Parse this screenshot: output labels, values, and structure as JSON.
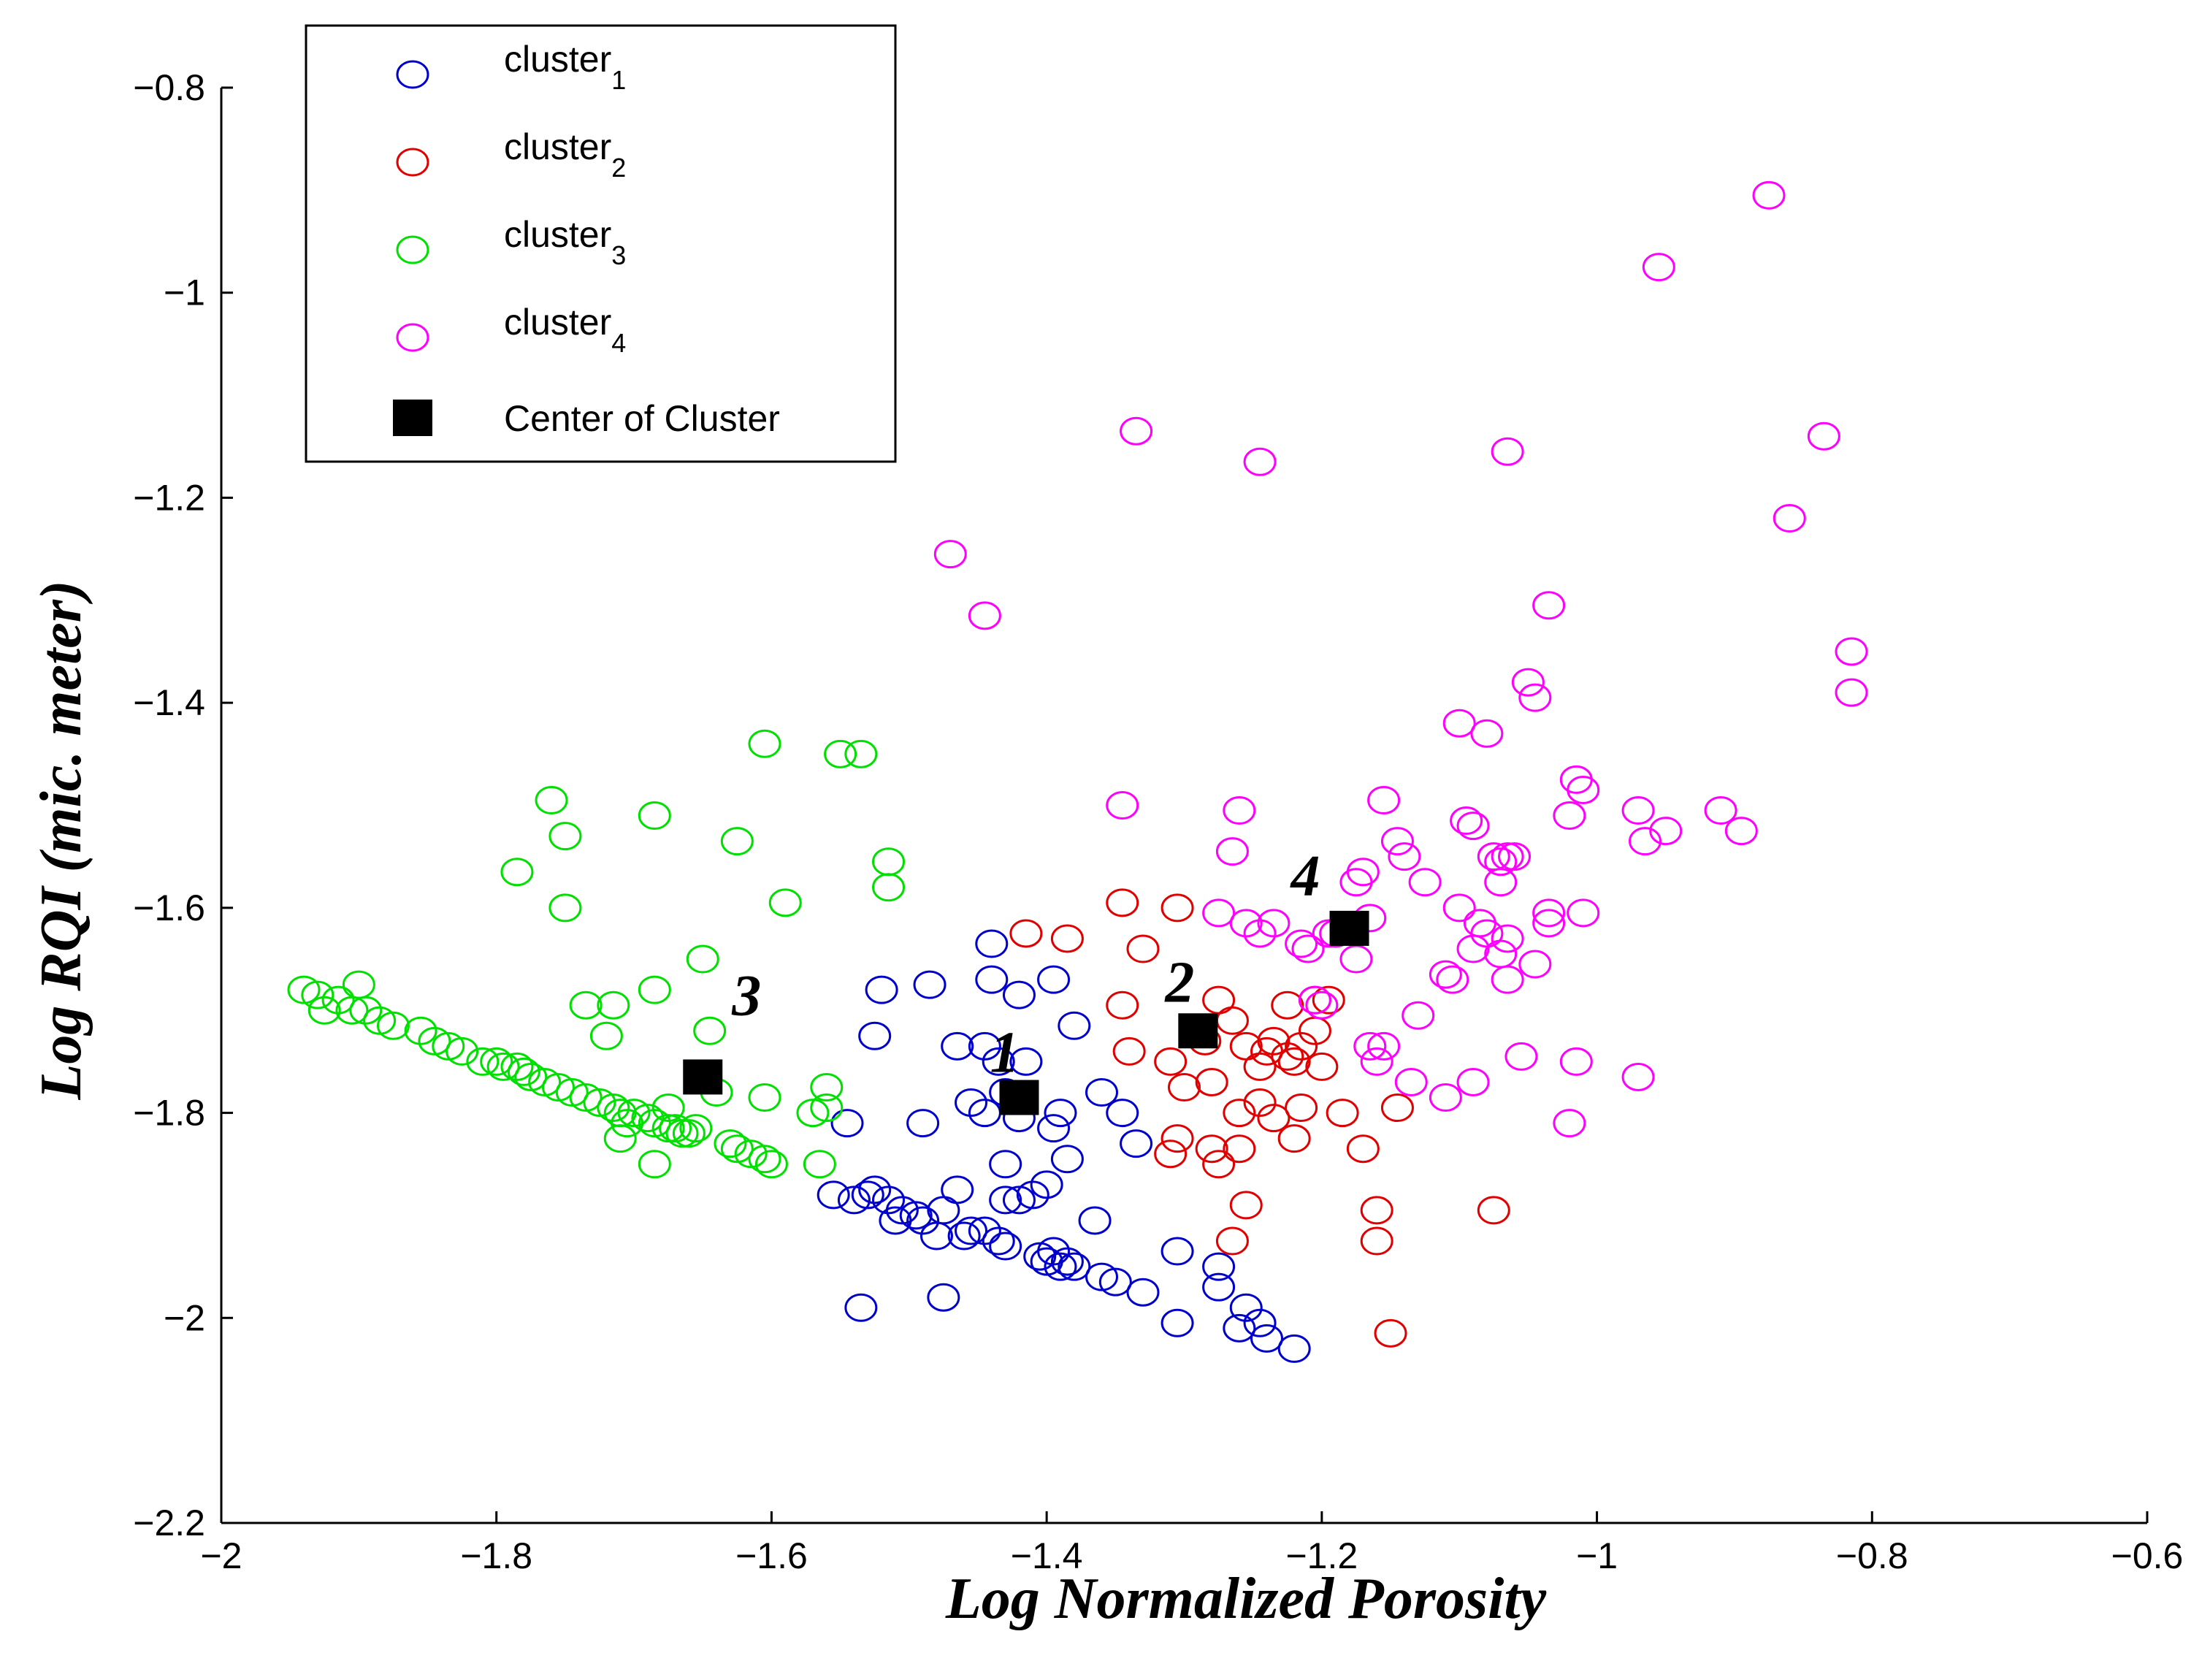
{
  "chart_data": {
    "type": "scatter",
    "title": "",
    "xlabel": "Log Normalized Porosity",
    "ylabel": "Log  RQI (mic. meter)",
    "xlim": [
      -2,
      -0.6
    ],
    "ylim": [
      -2.2,
      -0.8
    ],
    "xticks": [
      -2,
      -1.8,
      -1.6,
      -1.4,
      -1.2,
      -1,
      -0.8,
      -0.6
    ],
    "xtick_labels": [
      "−2",
      "−1.8",
      "−1.6",
      "−1.4",
      "−1.2",
      "−1",
      "−0.8",
      "−0.6"
    ],
    "yticks": [
      -2.2,
      -2,
      -1.8,
      -1.6,
      -1.4,
      -1.2,
      -1,
      -0.8
    ],
    "ytick_labels": [
      "−2.2",
      "−2",
      "−1.8",
      "−1.6",
      "−1.4",
      "−1.2",
      "−1",
      "−0.8"
    ],
    "legend_position": "top-left",
    "series": [
      {
        "name": "cluster",
        "sub": "1",
        "color": "#0000cc",
        "marker": "circle",
        "points": [
          [
            -1.44,
            -1.635
          ],
          [
            -1.44,
            -1.67
          ],
          [
            -1.42,
            -1.685
          ],
          [
            -1.395,
            -1.67
          ],
          [
            -1.52,
            -1.68
          ],
          [
            -1.485,
            -1.675
          ],
          [
            -1.525,
            -1.725
          ],
          [
            -1.465,
            -1.735
          ],
          [
            -1.445,
            -1.735
          ],
          [
            -1.435,
            -1.75
          ],
          [
            -1.415,
            -1.75
          ],
          [
            -1.38,
            -1.715
          ],
          [
            -1.36,
            -1.78
          ],
          [
            -1.345,
            -1.8
          ],
          [
            -1.335,
            -1.83
          ],
          [
            -1.545,
            -1.81
          ],
          [
            -1.49,
            -1.81
          ],
          [
            -1.455,
            -1.79
          ],
          [
            -1.445,
            -1.8
          ],
          [
            -1.43,
            -1.78
          ],
          [
            -1.42,
            -1.805
          ],
          [
            -1.395,
            -1.815
          ],
          [
            -1.39,
            -1.8
          ],
          [
            -1.43,
            -1.85
          ],
          [
            -1.385,
            -1.845
          ],
          [
            -1.555,
            -1.88
          ],
          [
            -1.54,
            -1.885
          ],
          [
            -1.53,
            -1.88
          ],
          [
            -1.525,
            -1.875
          ],
          [
            -1.515,
            -1.885
          ],
          [
            -1.51,
            -1.905
          ],
          [
            -1.505,
            -1.895
          ],
          [
            -1.495,
            -1.9
          ],
          [
            -1.49,
            -1.905
          ],
          [
            -1.48,
            -1.92
          ],
          [
            -1.475,
            -1.895
          ],
          [
            -1.465,
            -1.875
          ],
          [
            -1.46,
            -1.92
          ],
          [
            -1.455,
            -1.915
          ],
          [
            -1.445,
            -1.915
          ],
          [
            -1.435,
            -1.925
          ],
          [
            -1.43,
            -1.93
          ],
          [
            -1.43,
            -1.885
          ],
          [
            -1.42,
            -1.885
          ],
          [
            -1.41,
            -1.88
          ],
          [
            -1.4,
            -1.87
          ],
          [
            -1.405,
            -1.94
          ],
          [
            -1.4,
            -1.945
          ],
          [
            -1.39,
            -1.95
          ],
          [
            -1.385,
            -1.945
          ],
          [
            -1.38,
            -1.95
          ],
          [
            -1.395,
            -1.935
          ],
          [
            -1.36,
            -1.96
          ],
          [
            -1.35,
            -1.965
          ],
          [
            -1.365,
            -1.905
          ],
          [
            -1.33,
            -1.975
          ],
          [
            -1.305,
            -1.935
          ],
          [
            -1.275,
            -1.95
          ],
          [
            -1.275,
            -1.97
          ],
          [
            -1.26,
            -2.01
          ],
          [
            -1.255,
            -1.99
          ],
          [
            -1.245,
            -2.005
          ],
          [
            -1.24,
            -2.02
          ],
          [
            -1.22,
            -2.03
          ],
          [
            -1.305,
            -2.005
          ],
          [
            -1.475,
            -1.98
          ],
          [
            -1.535,
            -1.99
          ]
        ]
      },
      {
        "name": "cluster",
        "sub": "2",
        "color": "#e00000",
        "marker": "circle",
        "points": [
          [
            -1.415,
            -1.625
          ],
          [
            -1.385,
            -1.63
          ],
          [
            -1.345,
            -1.595
          ],
          [
            -1.305,
            -1.6
          ],
          [
            -1.33,
            -1.64
          ],
          [
            -1.345,
            -1.695
          ],
          [
            -1.34,
            -1.74
          ],
          [
            -1.31,
            -1.75
          ],
          [
            -1.3,
            -1.775
          ],
          [
            -1.285,
            -1.73
          ],
          [
            -1.275,
            -1.69
          ],
          [
            -1.265,
            -1.71
          ],
          [
            -1.255,
            -1.735
          ],
          [
            -1.245,
            -1.755
          ],
          [
            -1.24,
            -1.74
          ],
          [
            -1.235,
            -1.73
          ],
          [
            -1.225,
            -1.745
          ],
          [
            -1.22,
            -1.75
          ],
          [
            -1.215,
            -1.735
          ],
          [
            -1.205,
            -1.72
          ],
          [
            -1.2,
            -1.755
          ],
          [
            -1.195,
            -1.69
          ],
          [
            -1.205,
            -1.69
          ],
          [
            -1.225,
            -1.695
          ],
          [
            -1.28,
            -1.77
          ],
          [
            -1.26,
            -1.8
          ],
          [
            -1.245,
            -1.79
          ],
          [
            -1.235,
            -1.805
          ],
          [
            -1.22,
            -1.825
          ],
          [
            -1.215,
            -1.795
          ],
          [
            -1.185,
            -1.8
          ],
          [
            -1.17,
            -1.835
          ],
          [
            -1.145,
            -1.795
          ],
          [
            -1.305,
            -1.825
          ],
          [
            -1.31,
            -1.84
          ],
          [
            -1.28,
            -1.835
          ],
          [
            -1.275,
            -1.85
          ],
          [
            -1.26,
            -1.835
          ],
          [
            -1.255,
            -1.89
          ],
          [
            -1.265,
            -1.925
          ],
          [
            -1.16,
            -1.895
          ],
          [
            -1.16,
            -1.925
          ],
          [
            -1.15,
            -2.015
          ],
          [
            -1.075,
            -1.895
          ]
        ]
      },
      {
        "name": "cluster",
        "sub": "3",
        "color": "#00e000",
        "marker": "circle",
        "points": [
          [
            -1.94,
            -1.68
          ],
          [
            -1.93,
            -1.685
          ],
          [
            -1.925,
            -1.7
          ],
          [
            -1.915,
            -1.69
          ],
          [
            -1.905,
            -1.7
          ],
          [
            -1.9,
            -1.675
          ],
          [
            -1.895,
            -1.7
          ],
          [
            -1.885,
            -1.71
          ],
          [
            -1.875,
            -1.715
          ],
          [
            -1.855,
            -1.72
          ],
          [
            -1.845,
            -1.73
          ],
          [
            -1.835,
            -1.735
          ],
          [
            -1.825,
            -1.74
          ],
          [
            -1.81,
            -1.75
          ],
          [
            -1.8,
            -1.75
          ],
          [
            -1.795,
            -1.755
          ],
          [
            -1.785,
            -1.755
          ],
          [
            -1.78,
            -1.76
          ],
          [
            -1.775,
            -1.765
          ],
          [
            -1.765,
            -1.77
          ],
          [
            -1.755,
            -1.775
          ],
          [
            -1.745,
            -1.78
          ],
          [
            -1.735,
            -1.785
          ],
          [
            -1.725,
            -1.79
          ],
          [
            -1.715,
            -1.795
          ],
          [
            -1.71,
            -1.8
          ],
          [
            -1.705,
            -1.81
          ],
          [
            -1.7,
            -1.8
          ],
          [
            -1.69,
            -1.805
          ],
          [
            -1.685,
            -1.81
          ],
          [
            -1.675,
            -1.815
          ],
          [
            -1.67,
            -1.815
          ],
          [
            -1.665,
            -1.82
          ],
          [
            -1.66,
            -1.82
          ],
          [
            -1.655,
            -1.815
          ],
          [
            -1.63,
            -1.83
          ],
          [
            -1.625,
            -1.835
          ],
          [
            -1.615,
            -1.84
          ],
          [
            -1.605,
            -1.845
          ],
          [
            -1.6,
            -1.85
          ],
          [
            -1.565,
            -1.85
          ],
          [
            -1.685,
            -1.85
          ],
          [
            -1.71,
            -1.825
          ],
          [
            -1.675,
            -1.795
          ],
          [
            -1.64,
            -1.78
          ],
          [
            -1.605,
            -1.785
          ],
          [
            -1.57,
            -1.8
          ],
          [
            -1.56,
            -1.795
          ],
          [
            -1.56,
            -1.775
          ],
          [
            -1.72,
            -1.725
          ],
          [
            -1.735,
            -1.695
          ],
          [
            -1.715,
            -1.695
          ],
          [
            -1.685,
            -1.68
          ],
          [
            -1.65,
            -1.65
          ],
          [
            -1.645,
            -1.72
          ],
          [
            -1.76,
            -1.495
          ],
          [
            -1.75,
            -1.53
          ],
          [
            -1.785,
            -1.565
          ],
          [
            -1.75,
            -1.6
          ],
          [
            -1.685,
            -1.51
          ],
          [
            -1.625,
            -1.535
          ],
          [
            -1.605,
            -1.44
          ],
          [
            -1.55,
            -1.45
          ],
          [
            -1.535,
            -1.45
          ],
          [
            -1.515,
            -1.555
          ],
          [
            -1.515,
            -1.58
          ],
          [
            -1.59,
            -1.595
          ]
        ]
      },
      {
        "name": "cluster",
        "sub": "4",
        "color": "#ff00ff",
        "marker": "circle",
        "points": [
          [
            -0.875,
            -0.905
          ],
          [
            -0.955,
            -0.975
          ],
          [
            -1.335,
            -1.135
          ],
          [
            -1.245,
            -1.165
          ],
          [
            -1.065,
            -1.155
          ],
          [
            -0.835,
            -1.14
          ],
          [
            -0.86,
            -1.22
          ],
          [
            -1.47,
            -1.255
          ],
          [
            -1.445,
            -1.315
          ],
          [
            -1.035,
            -1.305
          ],
          [
            -0.815,
            -1.35
          ],
          [
            -0.815,
            -1.39
          ],
          [
            -1.05,
            -1.38
          ],
          [
            -1.045,
            -1.395
          ],
          [
            -1.1,
            -1.42
          ],
          [
            -1.08,
            -1.43
          ],
          [
            -1.015,
            -1.475
          ],
          [
            -1.01,
            -1.485
          ],
          [
            -1.345,
            -1.5
          ],
          [
            -1.26,
            -1.505
          ],
          [
            -1.155,
            -1.495
          ],
          [
            -0.97,
            -1.505
          ],
          [
            -0.965,
            -1.535
          ],
          [
            -0.95,
            -1.525
          ],
          [
            -0.91,
            -1.505
          ],
          [
            -0.895,
            -1.525
          ],
          [
            -1.095,
            -1.515
          ],
          [
            -1.09,
            -1.52
          ],
          [
            -1.02,
            -1.51
          ],
          [
            -1.145,
            -1.535
          ],
          [
            -1.14,
            -1.55
          ],
          [
            -1.125,
            -1.575
          ],
          [
            -1.17,
            -1.565
          ],
          [
            -1.175,
            -1.575
          ],
          [
            -1.075,
            -1.55
          ],
          [
            -1.07,
            -1.555
          ],
          [
            -1.065,
            -1.55
          ],
          [
            -1.06,
            -1.55
          ],
          [
            -1.07,
            -1.575
          ],
          [
            -1.265,
            -1.545
          ],
          [
            -1.275,
            -1.605
          ],
          [
            -1.255,
            -1.615
          ],
          [
            -1.245,
            -1.625
          ],
          [
            -1.235,
            -1.615
          ],
          [
            -1.215,
            -1.635
          ],
          [
            -1.21,
            -1.64
          ],
          [
            -1.195,
            -1.625
          ],
          [
            -1.19,
            -1.625
          ],
          [
            -1.175,
            -1.65
          ],
          [
            -1.165,
            -1.61
          ],
          [
            -1.1,
            -1.6
          ],
          [
            -1.085,
            -1.615
          ],
          [
            -1.08,
            -1.625
          ],
          [
            -1.09,
            -1.64
          ],
          [
            -1.07,
            -1.645
          ],
          [
            -1.065,
            -1.63
          ],
          [
            -1.035,
            -1.605
          ],
          [
            -1.035,
            -1.615
          ],
          [
            -1.01,
            -1.605
          ],
          [
            -1.045,
            -1.655
          ],
          [
            -1.065,
            -1.67
          ],
          [
            -1.11,
            -1.665
          ],
          [
            -1.105,
            -1.67
          ],
          [
            -1.205,
            -1.69
          ],
          [
            -1.2,
            -1.695
          ],
          [
            -1.13,
            -1.705
          ],
          [
            -1.165,
            -1.735
          ],
          [
            -1.16,
            -1.75
          ],
          [
            -1.155,
            -1.735
          ],
          [
            -1.055,
            -1.745
          ],
          [
            -1.015,
            -1.75
          ],
          [
            -0.97,
            -1.765
          ],
          [
            -1.135,
            -1.77
          ],
          [
            -1.11,
            -1.785
          ],
          [
            -1.09,
            -1.77
          ],
          [
            -1.02,
            -1.81
          ]
        ]
      }
    ],
    "centers": {
      "name": "Center of Cluster",
      "color": "#000000",
      "marker": "square",
      "points": [
        {
          "label": "1",
          "x": -1.42,
          "y": -1.785
        },
        {
          "label": "2",
          "x": -1.29,
          "y": -1.72
        },
        {
          "label": "3",
          "x": -1.65,
          "y": -1.765
        },
        {
          "label": "4",
          "x": -1.18,
          "y": -1.62
        }
      ]
    }
  }
}
